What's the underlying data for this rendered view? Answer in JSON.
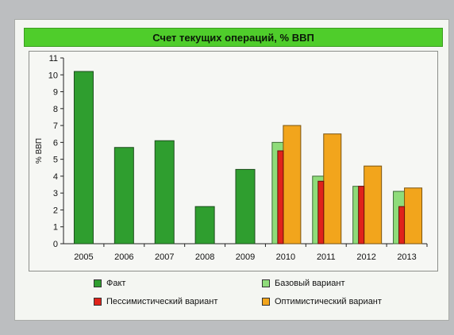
{
  "chart_data": {
    "type": "bar",
    "title": "Счет текущих операций, % ВВП",
    "ylabel": "% ВВП",
    "xlabel": "",
    "ylim": [
      0,
      11
    ],
    "yticks": [
      0,
      1,
      2,
      3,
      4,
      5,
      6,
      7,
      8,
      9,
      10,
      11
    ],
    "categories": [
      "2005",
      "2006",
      "2007",
      "2008",
      "2009",
      "2010",
      "2011",
      "2012",
      "2013"
    ],
    "series": [
      {
        "name": "Факт",
        "color": "#2f9e2f",
        "values": [
          10.2,
          5.7,
          6.1,
          2.2,
          4.4,
          null,
          null,
          null,
          null
        ]
      },
      {
        "name": "Базовый вариант",
        "color": "#8fdc7a",
        "values": [
          null,
          null,
          null,
          null,
          null,
          6.0,
          4.0,
          3.4,
          3.1
        ]
      },
      {
        "name": "Пессимистический вариант",
        "color": "#e0231b",
        "values": [
          null,
          null,
          null,
          null,
          null,
          5.5,
          3.7,
          3.4,
          2.2
        ]
      },
      {
        "name": "Оптимистический вариант",
        "color": "#f2a51c",
        "values": [
          null,
          null,
          null,
          null,
          null,
          7.0,
          6.5,
          4.6,
          3.3
        ]
      }
    ],
    "legend_position": "bottom",
    "grid": false
  }
}
